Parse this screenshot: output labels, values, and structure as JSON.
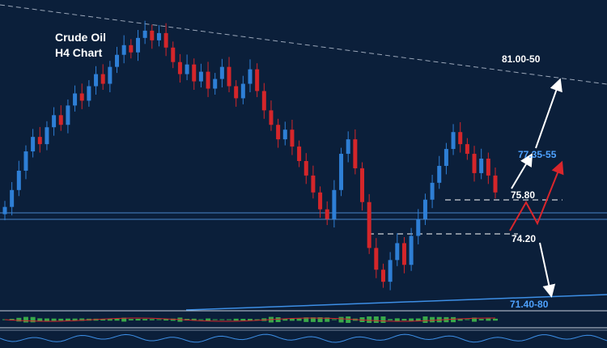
{
  "chart_data": {
    "type": "candlestick",
    "title_line1": "Crude Oil",
    "title_line2": "H4  Chart",
    "levels": {
      "upper_target": "81.00-50",
      "resistance_1": "77.35-55",
      "resistance_0": "75.80",
      "support_0": "74.20",
      "support_1": "71.40-80"
    },
    "price_axis_range": [
      70.5,
      82.5
    ],
    "series": [
      {
        "name": "",
        "closes": [
          74.6,
          75.3,
          76.1,
          76.9,
          77.5,
          77.2,
          77.9,
          78.4,
          78.0,
          78.8,
          79.3,
          79.0,
          79.6,
          80.1,
          79.7,
          80.4,
          80.9,
          81.3,
          81.0,
          81.6,
          81.9,
          81.5,
          81.8,
          81.2,
          80.6,
          80.1,
          80.5,
          79.8,
          80.2,
          79.5,
          79.9,
          80.4,
          79.6,
          79.1,
          79.7,
          80.3,
          79.4,
          78.6,
          78.0,
          77.4,
          77.8,
          77.1,
          76.5,
          75.9,
          75.2,
          74.5,
          74.1,
          75.3,
          76.8,
          77.4,
          76.2,
          74.8,
          72.9,
          72.0,
          71.5,
          72.4,
          73.1,
          72.2,
          73.4,
          74.1,
          74.9,
          75.6,
          76.3,
          77.0,
          77.7,
          77.2,
          76.8,
          76.0,
          76.6,
          75.9,
          75.2
        ]
      }
    ],
    "indicator_panels": 2,
    "grid": false,
    "legend": "none"
  },
  "colors": {
    "background": "#0b1f3a",
    "bull_candle": "#2e7fd6",
    "bear_candle": "#d4262a",
    "text": "#ffffff",
    "accent_blue": "#3d8fe6",
    "projection_red": "#d9262c",
    "macd_bar": "#3aa84a"
  }
}
